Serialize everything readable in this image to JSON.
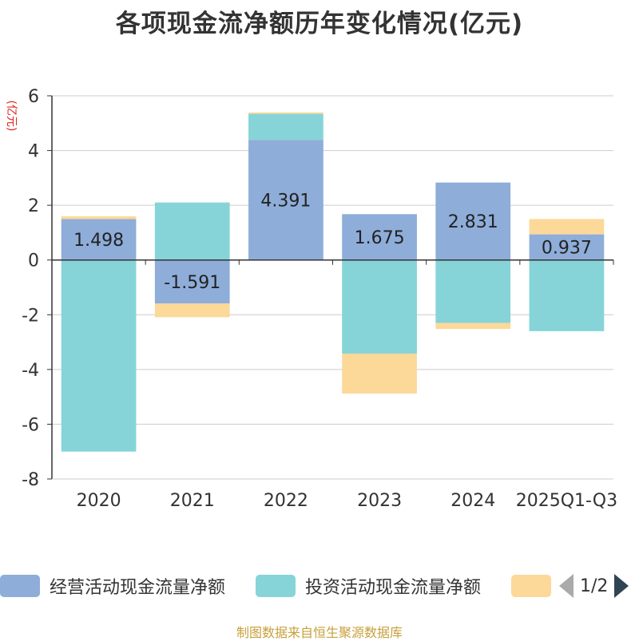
{
  "chart_data": {
    "type": "bar",
    "stacked": true,
    "title": "各项现金流净额历年变化情况(亿元)",
    "ylabel": "(亿元)",
    "xlabel": "",
    "categories": [
      "2020",
      "2021",
      "2022",
      "2023",
      "2024",
      "2025Q1-Q3"
    ],
    "ylim": [
      -8,
      6
    ],
    "yticks": [
      6,
      4,
      2,
      0,
      -2,
      -4,
      -6,
      -8
    ],
    "grid": true,
    "series": [
      {
        "name": "经营活动现金流量净额",
        "color": "#8eadd9",
        "values": [
          1.498,
          -1.591,
          4.391,
          1.675,
          2.831,
          0.937
        ],
        "show_labels": true
      },
      {
        "name": "投资活动现金流量净额",
        "color": "#86d4d8",
        "values": [
          -7.0,
          2.1,
          0.95,
          -3.42,
          -2.3,
          -2.6
        ],
        "show_labels": false
      },
      {
        "name": "",
        "color": "#fcd899",
        "values": [
          0.1,
          -0.5,
          0.05,
          -1.46,
          -0.22,
          0.56
        ],
        "show_labels": false
      }
    ],
    "legend_position": "bottom"
  },
  "legend": {
    "page": "1/2"
  },
  "source": "制图数据来自恒生聚源数据库"
}
